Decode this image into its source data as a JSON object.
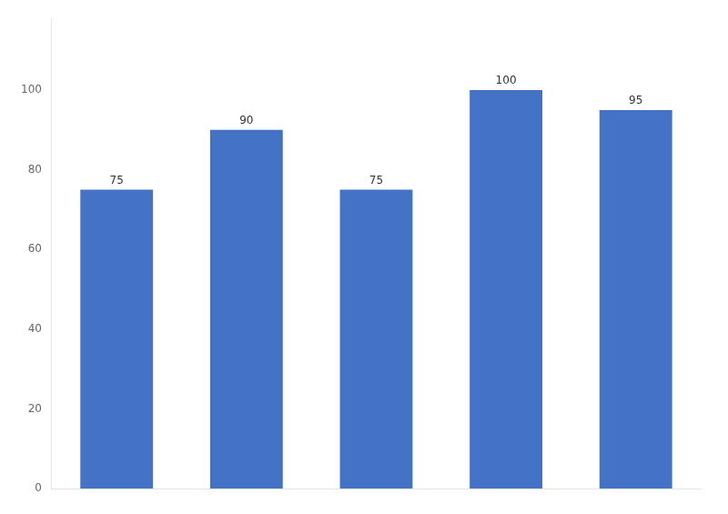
{
  "chart_data": {
    "type": "bar",
    "categories": [
      null,
      null,
      null,
      null,
      null
    ],
    "values": [
      75,
      90,
      75,
      100,
      95
    ],
    "color": "#4472C4",
    "ylim": [
      0,
      118
    ],
    "yticks": [
      0,
      20,
      40,
      60,
      80,
      100
    ],
    "grid": false,
    "data_labels": true,
    "tick_labels": "y"
  }
}
